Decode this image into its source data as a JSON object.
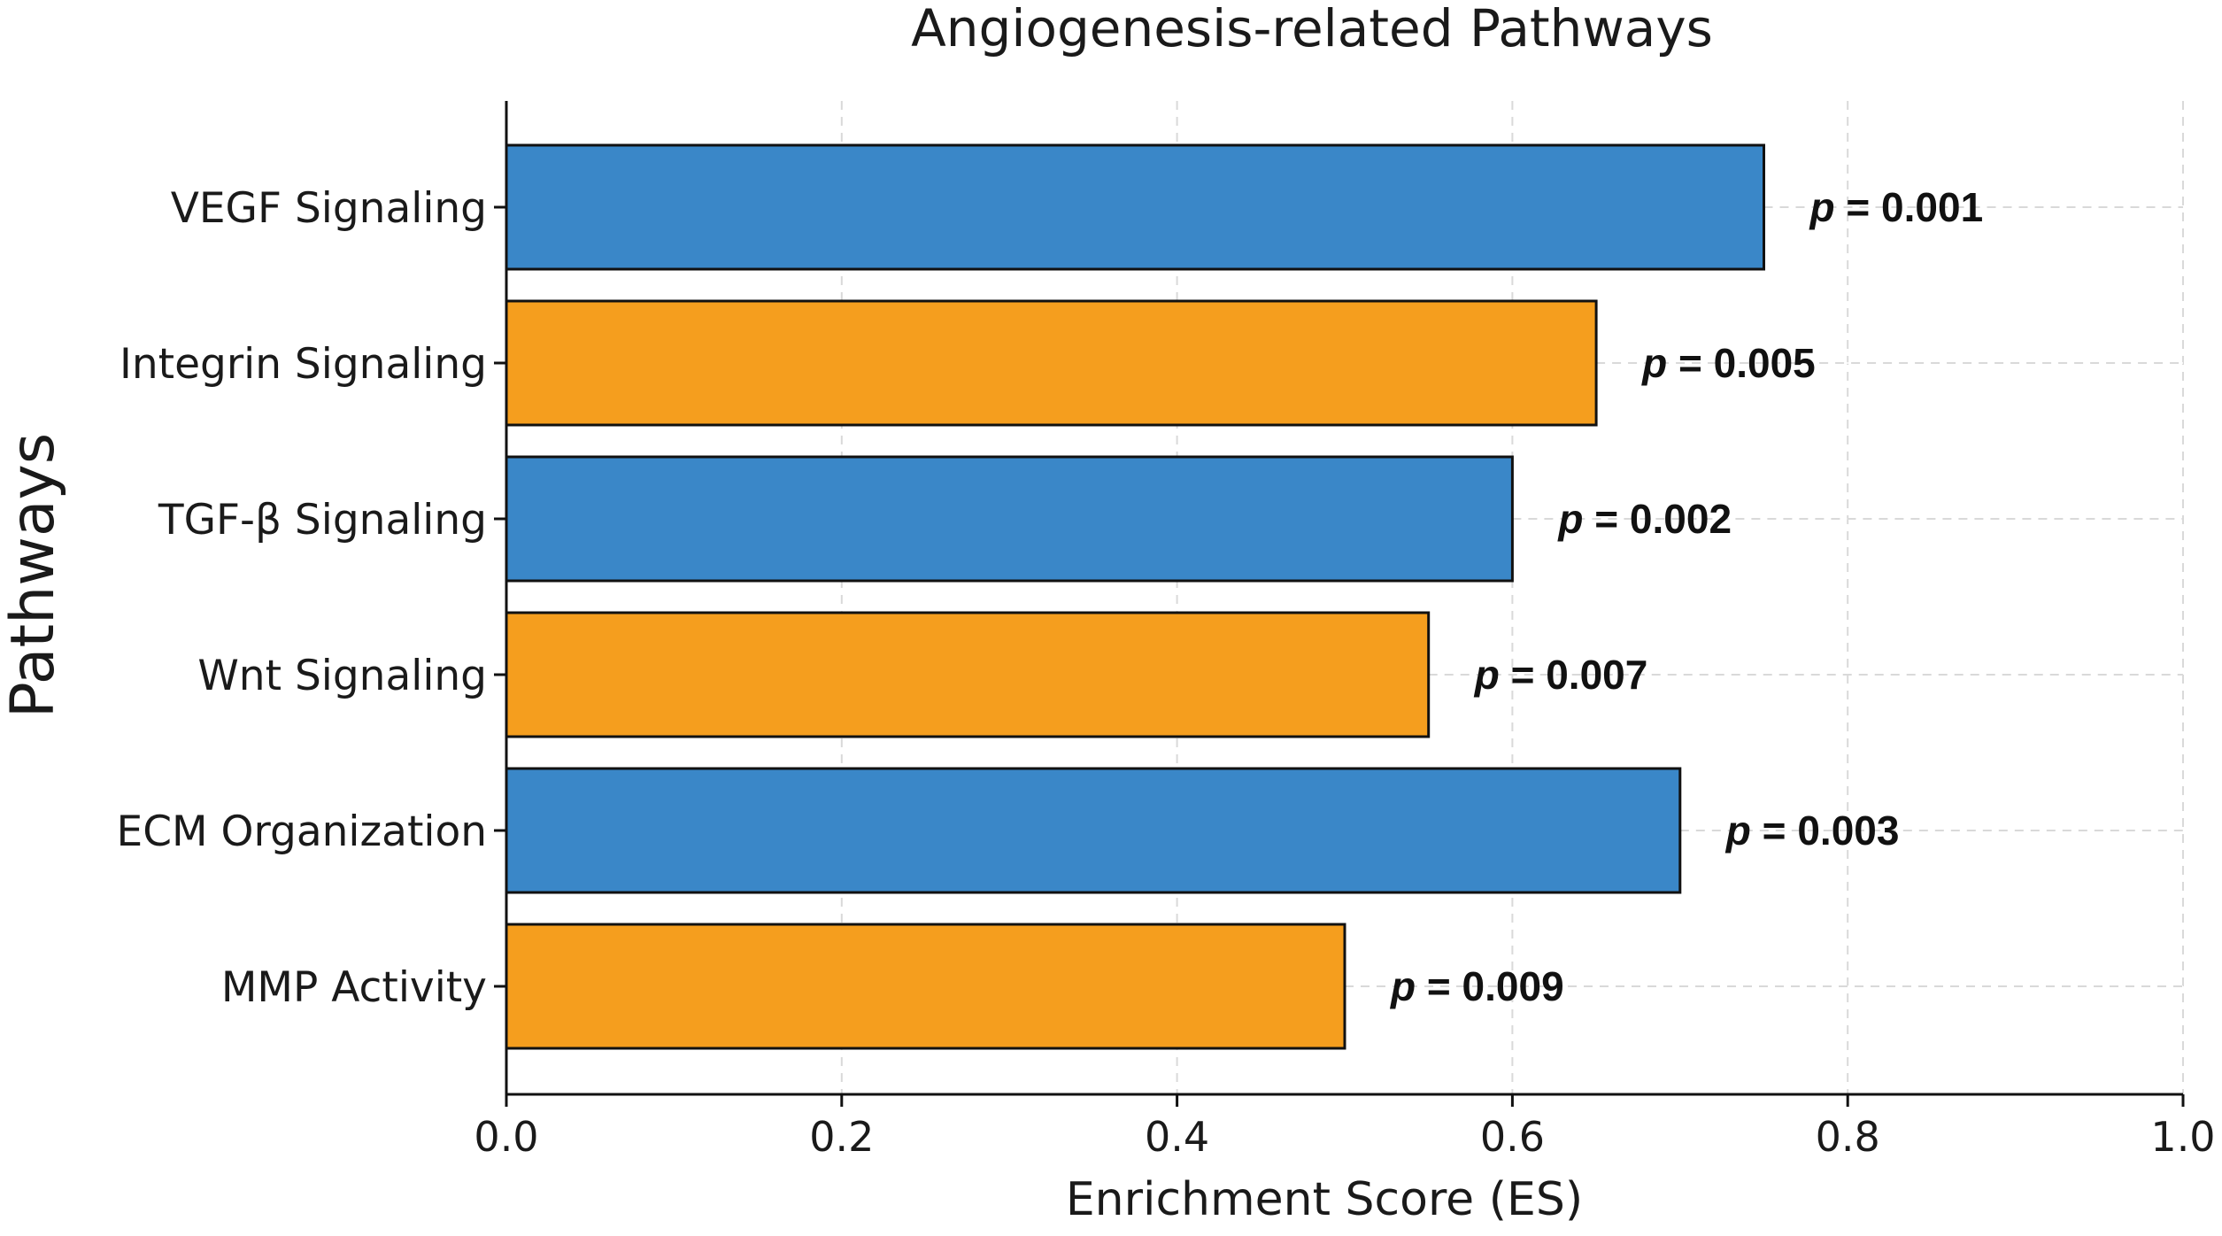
{
  "chart_data": {
    "type": "bar",
    "orientation": "horizontal",
    "title": "Angiogenesis-related Pathways",
    "xlabel": "Enrichment Score (ES)",
    "ylabel": "Pathways",
    "xlim": [
      0.0,
      1.0
    ],
    "xticks": [
      "0.0",
      "0.2",
      "0.4",
      "0.6",
      "0.8",
      "1.0"
    ],
    "xtick_values": [
      0.0,
      0.2,
      0.4,
      0.6,
      0.8,
      1.0
    ],
    "grid": true,
    "categories": [
      "VEGF Signaling",
      "Integrin Signaling",
      "TGF-β Signaling",
      "Wnt Signaling",
      "ECM Organization",
      "MMP Activity"
    ],
    "values": [
      0.75,
      0.65,
      0.6,
      0.55,
      0.7,
      0.5
    ],
    "colors": [
      "#3a87c8",
      "#f59e1e",
      "#3a87c8",
      "#f59e1e",
      "#3a87c8",
      "#f59e1e"
    ],
    "annotation_prefix": "p",
    "annotations": [
      "= 0.001",
      "= 0.005",
      "= 0.002",
      "= 0.007",
      "= 0.003",
      "= 0.009"
    ]
  }
}
